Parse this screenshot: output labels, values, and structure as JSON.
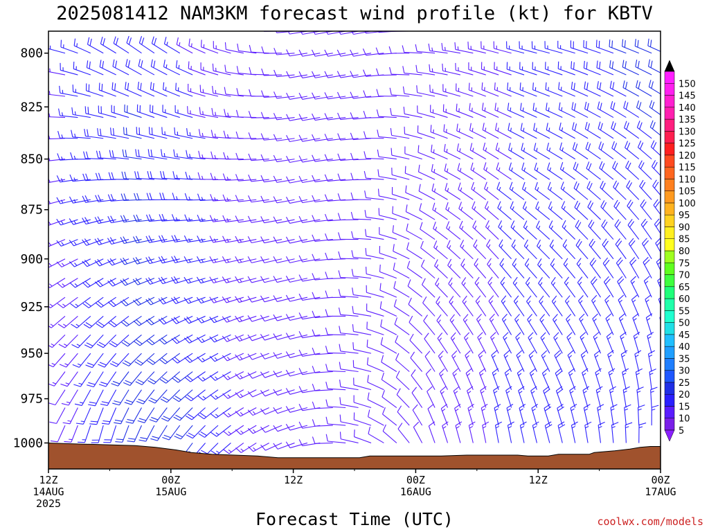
{
  "chart_data": {
    "type": "wind-barb-profile",
    "title": "2025081412 NAM3KM forecast wind profile (kt) for KBTV",
    "xlabel": "Forecast Time (UTC)",
    "credit": "coolwx.com/models",
    "x_range_hours": [
      0,
      60
    ],
    "y_axis": {
      "ticks": [
        800,
        825,
        850,
        875,
        900,
        925,
        950,
        975,
        1000
      ],
      "range": [
        790,
        1015
      ],
      "inverted": true,
      "unit": "hPa"
    },
    "x_ticks": [
      {
        "hour": 0,
        "line1": "12Z",
        "line2": "14AUG",
        "line3": "2025"
      },
      {
        "hour": 12,
        "line1": "00Z",
        "line2": "15AUG",
        "line3": ""
      },
      {
        "hour": 24,
        "line1": "12Z",
        "line2": "",
        "line3": ""
      },
      {
        "hour": 36,
        "line1": "00Z",
        "line2": "16AUG",
        "line3": ""
      },
      {
        "hour": 48,
        "line1": "12Z",
        "line2": "",
        "line3": ""
      },
      {
        "hour": 60,
        "line1": "00Z",
        "line2": "17AUG",
        "line3": ""
      }
    ],
    "colorbar": {
      "unit": "kt",
      "levels": [
        5,
        10,
        15,
        20,
        25,
        30,
        35,
        40,
        45,
        50,
        55,
        60,
        65,
        70,
        75,
        80,
        85,
        90,
        95,
        100,
        105,
        110,
        115,
        120,
        125,
        130,
        135,
        140,
        145,
        150
      ],
      "colors": [
        "#7a1fe8",
        "#5a1cff",
        "#2a1fff",
        "#1f2fe6",
        "#1f57ff",
        "#1f7fff",
        "#1f9fff",
        "#1fbfff",
        "#1fdfe6",
        "#1fffd0",
        "#1fffaa",
        "#1fff7a",
        "#3fff3f",
        "#5fff1f",
        "#9fff1f",
        "#ffff1f",
        "#ffef1f",
        "#ffd21f",
        "#ffb31f",
        "#ff9a1f",
        "#ff801f",
        "#ff661f",
        "#ff4a1f",
        "#ff1f1f",
        "#ff1f4f",
        "#ff1f7f",
        "#ff1faf",
        "#ff1fd0",
        "#ff1fef",
        "#ff1fff"
      ],
      "end_colors": {
        "top": "#000000",
        "bottom": "#8a1fff"
      }
    },
    "terrain_color": "#a0522d",
    "surface_pressure": [
      {
        "hour": 0,
        "p": 1000
      },
      {
        "hour": 2.5,
        "p": 1000.5
      },
      {
        "hour": 8.5,
        "p": 1001.5
      },
      {
        "hour": 10.5,
        "p": 1002.5
      },
      {
        "hour": 12.5,
        "p": 1004
      },
      {
        "hour": 14,
        "p": 1005.5
      },
      {
        "hour": 16,
        "p": 1006.5
      },
      {
        "hour": 20.5,
        "p": 1007.5
      },
      {
        "hour": 22.5,
        "p": 1008.5
      },
      {
        "hour": 30.5,
        "p": 1008.5
      },
      {
        "hour": 31.5,
        "p": 1007.5
      },
      {
        "hour": 38.5,
        "p": 1007.5
      },
      {
        "hour": 41,
        "p": 1007
      },
      {
        "hour": 46,
        "p": 1007
      },
      {
        "hour": 47,
        "p": 1007.5
      },
      {
        "hour": 49,
        "p": 1007.5
      },
      {
        "hour": 50,
        "p": 1006.5
      },
      {
        "hour": 53,
        "p": 1006.5
      },
      {
        "hour": 53.5,
        "p": 1005.5
      },
      {
        "hour": 55.5,
        "p": 1004.5
      },
      {
        "hour": 57,
        "p": 1003.5
      },
      {
        "hour": 58,
        "p": 1002.5
      },
      {
        "hour": 59,
        "p": 1002
      },
      {
        "hour": 60,
        "p": 1002
      }
    ],
    "wind_profile": {
      "pressure_levels": [
        790,
        800,
        810,
        820,
        830,
        840,
        850,
        860,
        870,
        880,
        890,
        900,
        910,
        920,
        930,
        940,
        950,
        960,
        970,
        980,
        990,
        1000
      ],
      "time_step_hours": 1.25,
      "time_count": 49,
      "keyframes": [
        {
          "hour": 0,
          "low_dir": 200,
          "low_spd": 12,
          "high_dir": 285,
          "high_spd": 15
        },
        {
          "hour": 4,
          "low_dir": 190,
          "low_spd": 18,
          "high_dir": 300,
          "high_spd": 18
        },
        {
          "hour": 8,
          "low_dir": 200,
          "low_spd": 22,
          "high_dir": 305,
          "high_spd": 20
        },
        {
          "hour": 12,
          "low_dir": 215,
          "low_spd": 22,
          "high_dir": 300,
          "high_spd": 15
        },
        {
          "hour": 18,
          "low_dir": 235,
          "low_spd": 14,
          "high_dir": 280,
          "high_spd": 12
        },
        {
          "hour": 24,
          "low_dir": 255,
          "low_spd": 10,
          "high_dir": 260,
          "high_spd": 10
        },
        {
          "hour": 30,
          "low_dir": 290,
          "low_spd": 10,
          "high_dir": 260,
          "high_spd": 12
        },
        {
          "hour": 36,
          "low_dir": 340,
          "low_spd": 12,
          "high_dir": 275,
          "high_spd": 12
        },
        {
          "hour": 42,
          "low_dir": 350,
          "low_spd": 15,
          "high_dir": 285,
          "high_spd": 14
        },
        {
          "hour": 48,
          "low_dir": 345,
          "low_spd": 18,
          "high_dir": 285,
          "high_spd": 16
        },
        {
          "hour": 54,
          "low_dir": 355,
          "low_spd": 16,
          "high_dir": 290,
          "high_spd": 20
        },
        {
          "hour": 60,
          "low_dir": 10,
          "low_spd": 14,
          "high_dir": 295,
          "high_spd": 22
        }
      ]
    }
  }
}
